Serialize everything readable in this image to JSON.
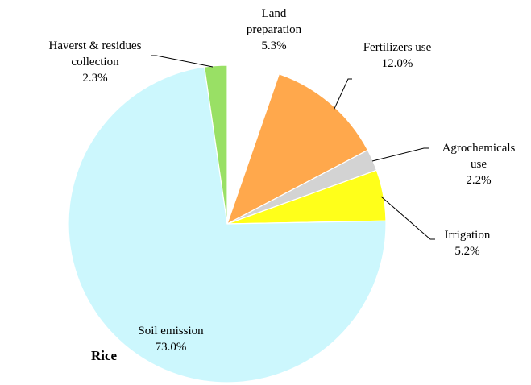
{
  "chart_data": {
    "type": "pie",
    "title": "Rice",
    "slices": [
      {
        "name_lines": [
          "Land",
          "preparation"
        ],
        "value_label": "5.3%",
        "value": 5.3,
        "color": "#ffffff"
      },
      {
        "name_lines": [
          "Fertilizers  use"
        ],
        "value_label": "12.0%",
        "value": 12.0,
        "color": "#ffa84c"
      },
      {
        "name_lines": [
          "Agrochemicals",
          "use"
        ],
        "value_label": "2.2%",
        "value": 2.2,
        "color": "#d3d3d3"
      },
      {
        "name_lines": [
          "Irrigation"
        ],
        "value_label": "5.2%",
        "value": 5.2,
        "color": "#ffff1a"
      },
      {
        "name_lines": [
          "Soil emission"
        ],
        "value_label": "73.0%",
        "value": 73.0,
        "color": "#ccf7fd"
      },
      {
        "name_lines": [
          "Haverst & residues",
          "collection"
        ],
        "value_label": "2.3%",
        "value": 2.3,
        "color": "#99e065"
      }
    ],
    "legend": "none",
    "start_angle": "12 o'clock",
    "direction": "clockwise"
  }
}
